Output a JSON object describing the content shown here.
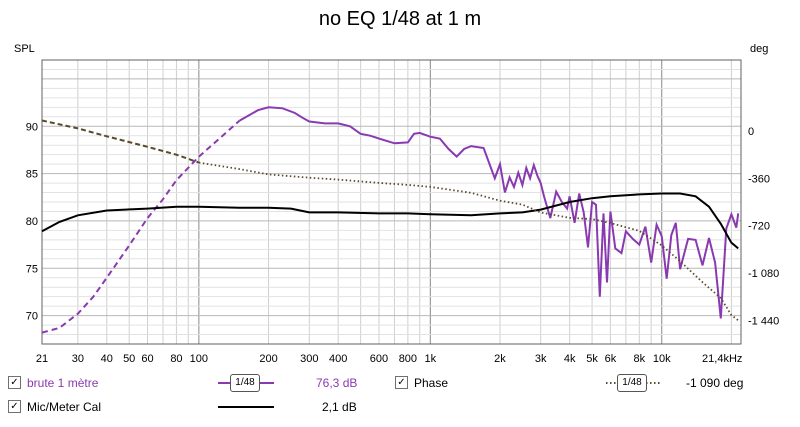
{
  "chart_data": {
    "type": "line",
    "title": "no EQ 1/48 at 1 m",
    "xscale": "log",
    "xlim": [
      21,
      22000
    ],
    "ylim": [
      67,
      97
    ],
    "y2lim": [
      -1620,
      540
    ],
    "ylabel": "SPL",
    "y2label": "deg",
    "grid": true,
    "xticks": [
      {
        "value": 21,
        "label": "21"
      },
      {
        "value": 30,
        "label": "30"
      },
      {
        "value": 40,
        "label": "40"
      },
      {
        "value": 50,
        "label": "50"
      },
      {
        "value": 60,
        "label": "60"
      },
      {
        "value": 80,
        "label": "80"
      },
      {
        "value": 100,
        "label": "100"
      },
      {
        "value": 200,
        "label": "200"
      },
      {
        "value": 300,
        "label": "300"
      },
      {
        "value": 400,
        "label": "400"
      },
      {
        "value": 600,
        "label": "600"
      },
      {
        "value": 800,
        "label": "800"
      },
      {
        "value": 1000,
        "label": "1k"
      },
      {
        "value": 2000,
        "label": "2k"
      },
      {
        "value": 3000,
        "label": "3k"
      },
      {
        "value": 4000,
        "label": "4k"
      },
      {
        "value": 5000,
        "label": "5k"
      },
      {
        "value": 6000,
        "label": "6k"
      },
      {
        "value": 8000,
        "label": "8k"
      },
      {
        "value": 10000,
        "label": "10k"
      },
      {
        "value": 21400,
        "label": "21,4kHz"
      }
    ],
    "yticks": [
      {
        "value": 70,
        "label": "70"
      },
      {
        "value": 75,
        "label": "75"
      },
      {
        "value": 80,
        "label": "80"
      },
      {
        "value": 85,
        "label": "85"
      },
      {
        "value": 90,
        "label": "90"
      }
    ],
    "y2ticks": [
      {
        "value": 0,
        "label": "0"
      },
      {
        "value": -360,
        "label": "-360"
      },
      {
        "value": -720,
        "label": "-720"
      },
      {
        "value": -1080,
        "label": "-1 080"
      },
      {
        "value": -1440,
        "label": "-1 440"
      }
    ],
    "series": [
      {
        "name": "brute 1 mètre",
        "axis": "left",
        "color": "#8a3ab0",
        "style": "solid-then-dashed-below-150Hz",
        "points": [
          [
            21,
            68.2
          ],
          [
            25,
            68.7
          ],
          [
            30,
            70.2
          ],
          [
            35,
            72.0
          ],
          [
            40,
            74.0
          ],
          [
            50,
            77.4
          ],
          [
            60,
            80.3
          ],
          [
            70,
            82.3
          ],
          [
            80,
            84.3
          ],
          [
            100,
            86.8
          ],
          [
            120,
            88.5
          ],
          [
            150,
            90.6
          ],
          [
            180,
            91.7
          ],
          [
            200,
            92.0
          ],
          [
            230,
            91.9
          ],
          [
            260,
            91.4
          ],
          [
            280,
            90.9
          ],
          [
            300,
            90.5
          ],
          [
            350,
            90.3
          ],
          [
            400,
            90.3
          ],
          [
            450,
            90.0
          ],
          [
            500,
            89.2
          ],
          [
            550,
            89.0
          ],
          [
            600,
            88.7
          ],
          [
            700,
            88.2
          ],
          [
            800,
            88.3
          ],
          [
            850,
            89.2
          ],
          [
            900,
            89.3
          ],
          [
            1000,
            88.9
          ],
          [
            1100,
            88.7
          ],
          [
            1200,
            87.6
          ],
          [
            1300,
            86.8
          ],
          [
            1400,
            87.6
          ],
          [
            1500,
            87.9
          ],
          [
            1700,
            87.7
          ],
          [
            1900,
            84.5
          ],
          [
            2000,
            86.0
          ],
          [
            2100,
            83.0
          ],
          [
            2200,
            84.6
          ],
          [
            2300,
            83.6
          ],
          [
            2400,
            85.1
          ],
          [
            2500,
            83.8
          ],
          [
            2600,
            85.6
          ],
          [
            2700,
            84.5
          ],
          [
            2800,
            85.9
          ],
          [
            2900,
            84.8
          ],
          [
            3000,
            84.0
          ],
          [
            3100,
            82.6
          ],
          [
            3300,
            80.3
          ],
          [
            3500,
            83.1
          ],
          [
            3700,
            82.0
          ],
          [
            3900,
            81.3
          ],
          [
            4000,
            82.6
          ],
          [
            4200,
            79.8
          ],
          [
            4400,
            82.9
          ],
          [
            4600,
            80.9
          ],
          [
            4800,
            77.2
          ],
          [
            5000,
            82.0
          ],
          [
            5200,
            81.7
          ],
          [
            5400,
            72.0
          ],
          [
            5600,
            80.8
          ],
          [
            5800,
            73.5
          ],
          [
            6000,
            81.0
          ],
          [
            6300,
            77.1
          ],
          [
            6700,
            76.6
          ],
          [
            7000,
            78.9
          ],
          [
            7500,
            78.1
          ],
          [
            8000,
            77.5
          ],
          [
            8500,
            79.4
          ],
          [
            9000,
            75.6
          ],
          [
            9500,
            79.6
          ],
          [
            10000,
            78.4
          ],
          [
            10500,
            73.9
          ],
          [
            11000,
            78.5
          ],
          [
            11500,
            79.8
          ],
          [
            12000,
            74.9
          ],
          [
            13000,
            78.1
          ],
          [
            14000,
            78.0
          ],
          [
            15000,
            75.3
          ],
          [
            16000,
            78.2
          ],
          [
            17000,
            75.6
          ],
          [
            18000,
            69.7
          ],
          [
            19000,
            79.2
          ],
          [
            20000,
            80.7
          ],
          [
            21000,
            79.3
          ],
          [
            21400,
            80.8
          ]
        ]
      },
      {
        "name": "Mic/Meter Cal",
        "axis": "left",
        "color": "#000000",
        "style": "solid",
        "points": [
          [
            21,
            78.9
          ],
          [
            25,
            79.9
          ],
          [
            30,
            80.6
          ],
          [
            40,
            81.1
          ],
          [
            60,
            81.3
          ],
          [
            80,
            81.5
          ],
          [
            100,
            81.5
          ],
          [
            150,
            81.4
          ],
          [
            200,
            81.4
          ],
          [
            250,
            81.3
          ],
          [
            300,
            80.9
          ],
          [
            400,
            80.9
          ],
          [
            600,
            80.8
          ],
          [
            800,
            80.8
          ],
          [
            1000,
            80.7
          ],
          [
            1500,
            80.6
          ],
          [
            2000,
            80.8
          ],
          [
            2500,
            80.9
          ],
          [
            3000,
            81.2
          ],
          [
            4000,
            82.0
          ],
          [
            5000,
            82.4
          ],
          [
            6000,
            82.6
          ],
          [
            8000,
            82.8
          ],
          [
            10000,
            82.9
          ],
          [
            12000,
            82.9
          ],
          [
            14000,
            82.6
          ],
          [
            16000,
            81.5
          ],
          [
            18000,
            79.7
          ],
          [
            20000,
            77.7
          ],
          [
            21400,
            77.1
          ]
        ]
      },
      {
        "name": "Phase",
        "axis": "right",
        "color": "#5a4a2c",
        "style": "dashed-then-dotted-above-100Hz",
        "points": [
          [
            21,
            80
          ],
          [
            30,
            20
          ],
          [
            40,
            -40
          ],
          [
            60,
            -120
          ],
          [
            80,
            -180
          ],
          [
            100,
            -240
          ],
          [
            150,
            -290
          ],
          [
            200,
            -330
          ],
          [
            300,
            -355
          ],
          [
            400,
            -370
          ],
          [
            600,
            -395
          ],
          [
            800,
            -410
          ],
          [
            1000,
            -425
          ],
          [
            1500,
            -470
          ],
          [
            2000,
            -530
          ],
          [
            2500,
            -560
          ],
          [
            3000,
            -620
          ],
          [
            4000,
            -660
          ],
          [
            5000,
            -670
          ],
          [
            6000,
            -700
          ],
          [
            8000,
            -760
          ],
          [
            10000,
            -870
          ],
          [
            12000,
            -990
          ],
          [
            15000,
            -1150
          ],
          [
            18000,
            -1270
          ],
          [
            20000,
            -1400
          ],
          [
            21400,
            -1440
          ]
        ]
      }
    ],
    "legend": [
      {
        "label": "brute 1 mètre",
        "checked": true,
        "color": "#8a3ab0",
        "smoothing": "1/48",
        "value": "76,3 dB"
      },
      {
        "label": "Phase",
        "checked": true,
        "color": "#5a4a2c",
        "smoothing": "1/48",
        "value": "-1 090 deg"
      },
      {
        "label": "Mic/Meter Cal",
        "checked": true,
        "color": "#000000",
        "value": "2,1 dB"
      }
    ]
  }
}
